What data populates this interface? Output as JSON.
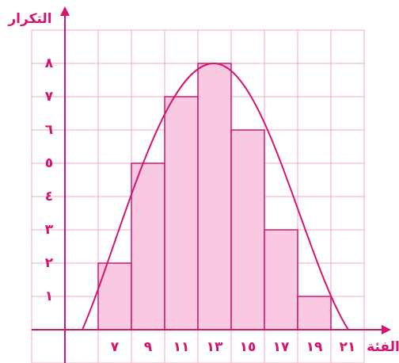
{
  "chart_data": {
    "type": "bar",
    "x_label": "الفئة",
    "y_label": "التكرار",
    "categories": [
      "٧",
      "٩",
      "١١",
      "١٣",
      "١٥",
      "١٧",
      "١٩",
      "٢١"
    ],
    "values": [
      2,
      5,
      7,
      8,
      6,
      3,
      1,
      0
    ],
    "color": "#f8c9e0",
    "ylim": [
      0,
      9
    ],
    "yticks": [
      {
        "value": 1,
        "label": "١"
      },
      {
        "value": 2,
        "label": "٢"
      },
      {
        "value": 3,
        "label": "٣"
      },
      {
        "value": 4,
        "label": "٤"
      },
      {
        "value": 5,
        "label": "٥"
      },
      {
        "value": 6,
        "label": "٦"
      },
      {
        "value": 7,
        "label": "٧"
      },
      {
        "value": 8,
        "label": "٨"
      }
    ],
    "grid": true
  }
}
